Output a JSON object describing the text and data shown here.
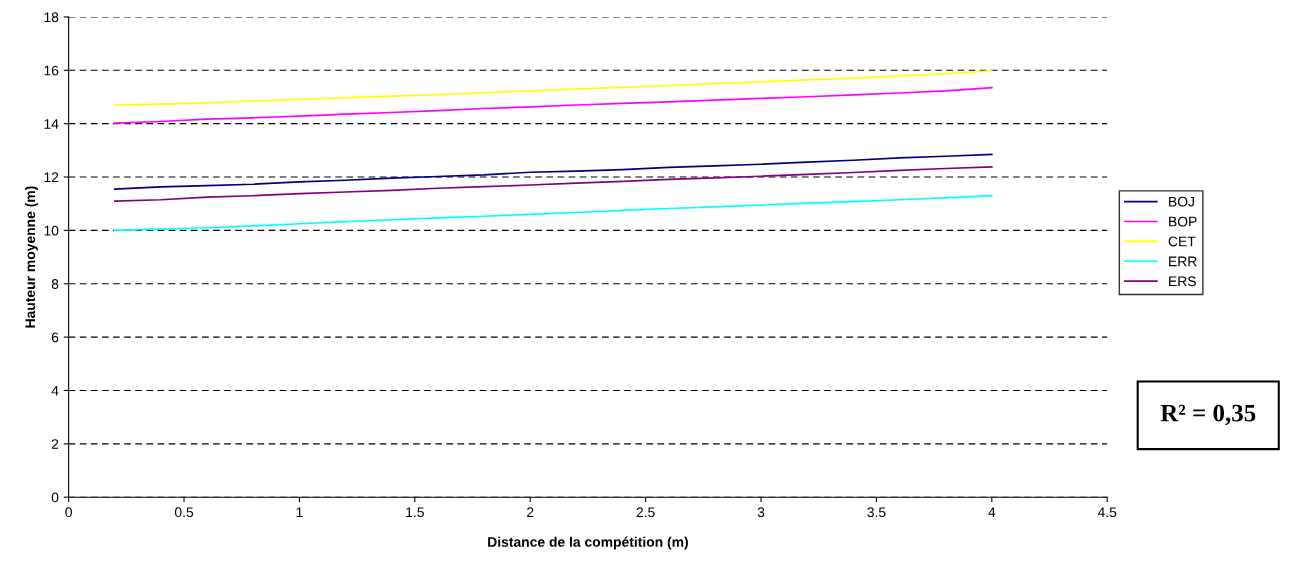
{
  "chart_data": {
    "type": "line",
    "xlabel": "Distance de la compétition (m)",
    "ylabel": "Hauteur moyenne (m)",
    "x": [
      0.2,
      0.4,
      0.6,
      0.8,
      1.0,
      1.2,
      1.4,
      1.6,
      1.8,
      2.0,
      2.2,
      2.4,
      2.6,
      2.8,
      3.0,
      3.2,
      3.4,
      3.6,
      3.8,
      4.0
    ],
    "series": [
      {
        "name": "BOJ",
        "color": "#000080",
        "values": [
          11.55,
          11.63,
          11.68,
          11.73,
          11.82,
          11.88,
          11.96,
          12.02,
          12.08,
          12.18,
          12.22,
          12.28,
          12.36,
          12.42,
          12.48,
          12.56,
          12.63,
          12.72,
          12.78,
          12.85
        ]
      },
      {
        "name": "BOP",
        "color": "#ff00ff",
        "values": [
          14.02,
          14.08,
          14.17,
          14.22,
          14.28,
          14.36,
          14.42,
          14.49,
          14.57,
          14.63,
          14.7,
          14.76,
          14.82,
          14.88,
          14.95,
          15.01,
          15.08,
          15.15,
          15.23,
          15.35
        ]
      },
      {
        "name": "CET",
        "color": "#ffff00",
        "values": [
          14.7,
          14.73,
          14.78,
          14.85,
          14.91,
          14.97,
          15.03,
          15.09,
          15.16,
          15.23,
          15.3,
          15.36,
          15.43,
          15.5,
          15.57,
          15.64,
          15.71,
          15.79,
          15.87,
          15.98
        ]
      },
      {
        "name": "ERR",
        "color": "#00ffff",
        "values": [
          10.0,
          10.05,
          10.1,
          10.17,
          10.25,
          10.33,
          10.4,
          10.47,
          10.53,
          10.6,
          10.67,
          10.75,
          10.82,
          10.88,
          10.95,
          11.02,
          11.08,
          11.15,
          11.22,
          11.3
        ]
      },
      {
        "name": "ERS",
        "color": "#800080",
        "values": [
          11.1,
          11.15,
          11.25,
          11.3,
          11.38,
          11.44,
          11.5,
          11.58,
          11.64,
          11.7,
          11.77,
          11.84,
          11.91,
          11.97,
          12.03,
          12.1,
          12.17,
          12.25,
          12.32,
          12.38
        ]
      }
    ],
    "xlim": [
      0,
      4.5
    ],
    "xticks": [
      0,
      0.5,
      1,
      1.5,
      2,
      2.5,
      3,
      3.5,
      4,
      4.5
    ],
    "ylim": [
      0,
      18
    ],
    "yticks": [
      0,
      2,
      4,
      6,
      8,
      10,
      12,
      14,
      16,
      18
    ],
    "grid": "y",
    "legend": "right",
    "marker": "none",
    "line_style": "solid",
    "annotations": [
      "R² = 0,35"
    ]
  }
}
